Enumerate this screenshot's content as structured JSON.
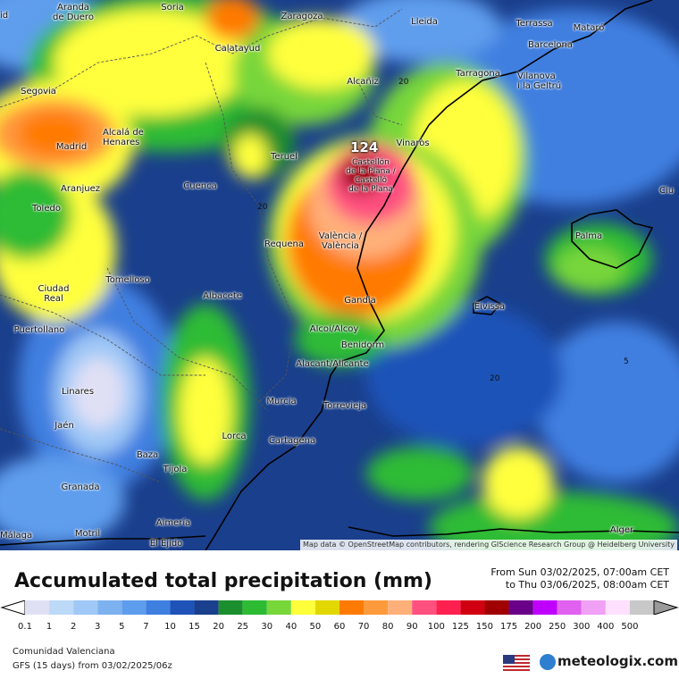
{
  "map": {
    "max_value": "124",
    "attribution": "Map data © OpenStreetMap contributors, rendering GIScience Research Group @ Heidelberg University",
    "contour_labels": [
      "20",
      "20",
      "20",
      "5"
    ],
    "cities": [
      {
        "name": "Aranda\nde Duero"
      },
      {
        "name": "Soria"
      },
      {
        "name": "Zaragoza"
      },
      {
        "name": "Lleida"
      },
      {
        "name": "Terrassa"
      },
      {
        "name": "Mataró"
      },
      {
        "name": "Barcelona"
      },
      {
        "name": "Calatayud"
      },
      {
        "name": "Segovia"
      },
      {
        "name": "Alcañiz"
      },
      {
        "name": "Tarragona"
      },
      {
        "name": "Vilanova\ni la Geltrú"
      },
      {
        "name": "Alcalá de\nHenares"
      },
      {
        "name": "Madrid"
      },
      {
        "name": "Teruel"
      },
      {
        "name": "Vinaròs"
      },
      {
        "name": "Castellón\nde la Plana /\nCastelló\nde la Plana"
      },
      {
        "name": "Aranjuez"
      },
      {
        "name": "Cuenca"
      },
      {
        "name": "Toledo"
      },
      {
        "name": "Requena"
      },
      {
        "name": "València /\nValència"
      },
      {
        "name": "Palma"
      },
      {
        "name": "Ciudad\nReal"
      },
      {
        "name": "Tomelloso"
      },
      {
        "name": "Albacete"
      },
      {
        "name": "Gandia"
      },
      {
        "name": "Eivissa"
      },
      {
        "name": "Puertollano"
      },
      {
        "name": "Alcoi/Alcoy"
      },
      {
        "name": "Benidorm"
      },
      {
        "name": "Alacant/Alicante"
      },
      {
        "name": "Linares"
      },
      {
        "name": "Murcia"
      },
      {
        "name": "Torrevieja"
      },
      {
        "name": "Jaén"
      },
      {
        "name": "Lorca"
      },
      {
        "name": "Cartagena"
      },
      {
        "name": "Baza"
      },
      {
        "name": "Tíjola"
      },
      {
        "name": "Granada"
      },
      {
        "name": "Almería"
      },
      {
        "name": "Motril"
      },
      {
        "name": "El Ejido"
      },
      {
        "name": "Málaga"
      },
      {
        "name": "Alger"
      },
      {
        "name": "Ciu"
      },
      {
        "name": "id"
      }
    ]
  },
  "footer": {
    "title": "Accumulated total precipitation (mm)",
    "range_from": "From Sun 03/02/2025, 07:00am CET",
    "range_to": "to Thu 03/06/2025, 08:00am CET",
    "region": "Comunidad Valenciana",
    "model": "GFS (15 days) from  03/02/2025/06z",
    "logo": "meteologix.com",
    "scale_labels": [
      "0.1",
      "1",
      "2",
      "3",
      "5",
      "7",
      "10",
      "15",
      "20",
      "25",
      "30",
      "40",
      "50",
      "60",
      "70",
      "80",
      "90",
      "100",
      "125",
      "150",
      "175",
      "200",
      "250",
      "300",
      "400",
      "500"
    ],
    "scale_colors": [
      "#e0e0f5",
      "#bcd9f7",
      "#9fc8f6",
      "#7db2f0",
      "#5e9ded",
      "#3f7fe0",
      "#1f53b8",
      "#1a3f8c",
      "#1b8f2e",
      "#2dbb34",
      "#77d63a",
      "#ffff3c",
      "#e2d800",
      "#ff7a00",
      "#ff9a3c",
      "#ffb07a",
      "#ff5080",
      "#ff2050",
      "#d00010",
      "#a00000",
      "#6a0088",
      "#c000ff",
      "#e060f0",
      "#f0a0f5",
      "#ffe0ff",
      "#c8c8c8"
    ]
  }
}
